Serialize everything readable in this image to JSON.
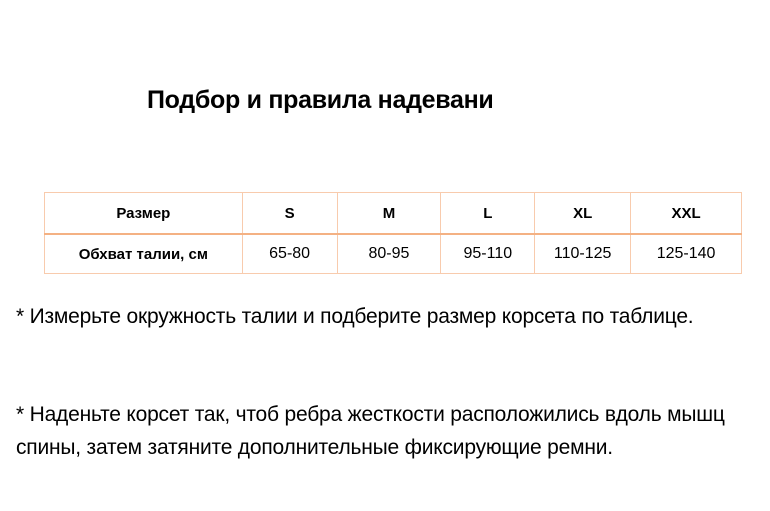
{
  "title": "Подбор и правила надевани",
  "table": {
    "header": [
      "Размер",
      "S",
      "M",
      "L",
      "XL",
      "XXL"
    ],
    "row": [
      "Обхват талии, см",
      "65-80",
      "80-95",
      "95-110",
      "110-125",
      "125-140"
    ]
  },
  "paragraphs": [
    "* Измерьте окружность талии и подберите размер корсета по таблице.",
    "* Наденьте корсет так, чтоб ребра жесткости расположились вдоль мышц спины, затем затяните дополнительные фиксирующие ремни."
  ]
}
